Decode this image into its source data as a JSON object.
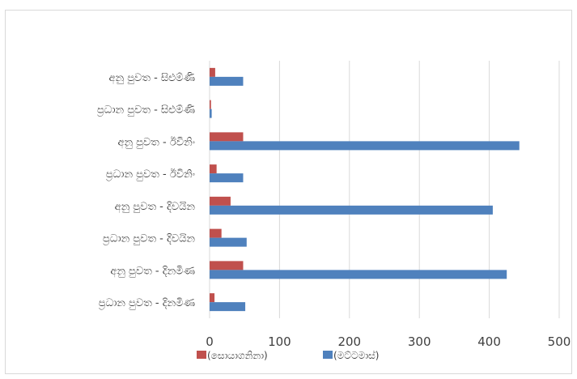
{
  "chart_data": {
    "type": "bar",
    "orientation": "horizontal",
    "categories": [
      "අනු පුවත - සිළුම්ණි",
      "ප්‍රධාන පුවත - සිළුම්ණි",
      "අනු පුවත - ඊවිනිං",
      "ප්‍රධාන පුවත - ඊවිනිං",
      "අනු පුවත - දිවයින",
      "ප්‍රධාන පුවත - දිවයින",
      "අනු පුවත - දිනමිණ",
      "ප්‍රධාන පුවත - දිනමිණ"
    ],
    "series": [
      {
        "name": "(සොයාගනිනා)",
        "color": "#c0504d",
        "values": [
          8,
          2,
          48,
          10,
          30,
          17,
          48,
          7
        ]
      },
      {
        "name": "(මට්ටමාස්)",
        "color": "#4f81bd",
        "values": [
          48,
          3,
          443,
          48,
          405,
          53,
          425,
          51
        ]
      }
    ],
    "xlim": [
      0,
      500
    ],
    "xticks": [
      "0",
      "100",
      "200",
      "300",
      "400",
      "500"
    ],
    "grid": true,
    "legend": "bottom",
    "title": "",
    "xlabel": "",
    "ylabel": ""
  }
}
